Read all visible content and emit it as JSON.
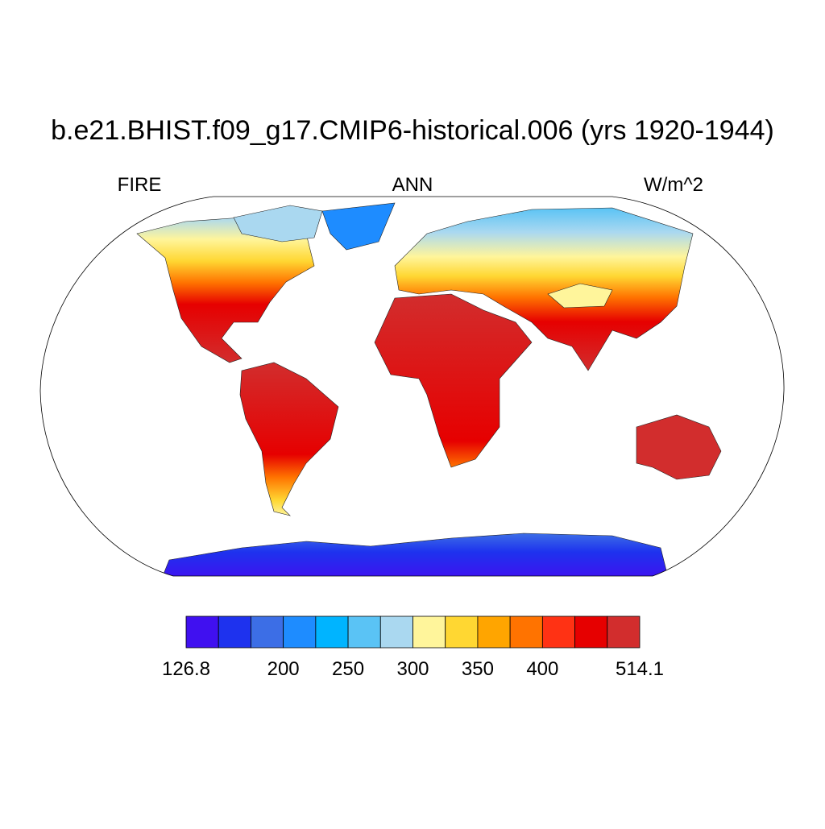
{
  "title": "b.e21.BHIST.f09_g17.CMIP6-historical.006 (yrs 1920-1944)",
  "left_label": "FIRE",
  "center_label": "ANN",
  "right_label": "W/m^2",
  "colorbar": {
    "colors": [
      "#4010f0",
      "#1e32ee",
      "#3c6ee6",
      "#1e8cff",
      "#00b4ff",
      "#5ac3f5",
      "#aad8f0",
      "#fff59b",
      "#ffd732",
      "#ffa500",
      "#ff7300",
      "#ff3214",
      "#e60000",
      "#d22d2d"
    ],
    "labels": [
      126.8,
      200,
      250,
      300,
      350,
      400,
      514.1
    ]
  }
}
